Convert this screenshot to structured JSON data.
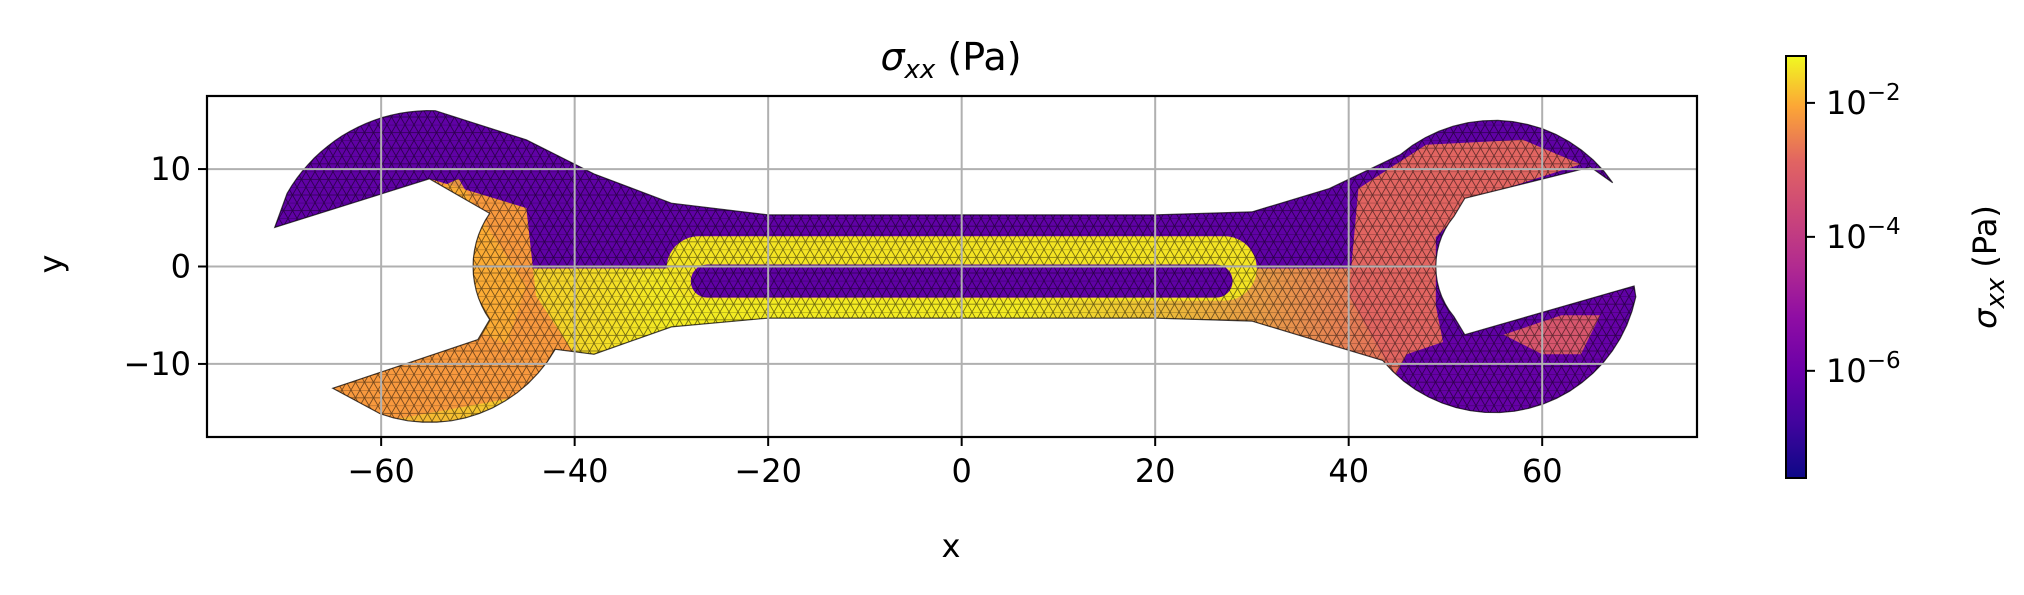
{
  "chart_data": {
    "type": "heatmap",
    "title": "σxx (Pa)",
    "title_parts": {
      "symbol": "σ",
      "subscript": "xx",
      "unit": " (Pa)"
    },
    "xlabel": "x",
    "ylabel": "y",
    "xlim": [
      -78,
      76
    ],
    "ylim": [
      -17.5,
      17.5
    ],
    "xticks": [
      -60,
      -40,
      -20,
      0,
      20,
      40,
      60
    ],
    "xtick_labels": [
      "−60",
      "−40",
      "−20",
      "0",
      "20",
      "40",
      "60"
    ],
    "yticks": [
      -10,
      0,
      10
    ],
    "ytick_labels": [
      "−10",
      "0",
      "10"
    ],
    "grid": true,
    "colormap": "plasma",
    "color_scale": "log",
    "colorbar": {
      "range_log10": [
        -7.6,
        -1.3
      ],
      "ticks_log10": [
        -6,
        -4,
        -2
      ],
      "tick_bases": [
        "10",
        "10",
        "10"
      ],
      "tick_exponents": [
        "−6",
        "−4",
        "−2"
      ],
      "label_symbol": "σ",
      "label_subscript": "xx",
      "label_unit": " (Pa)"
    },
    "field_regions": [
      {
        "region": "handle upper half",
        "sigma_xx_log10": -6.5
      },
      {
        "region": "handle lower edge band",
        "sigma_xx_log10": -1.5
      },
      {
        "region": "handle slot band",
        "sigma_xx_log10": -1.6
      },
      {
        "region": "left jaw upper",
        "sigma_xx_log10": -6.6
      },
      {
        "region": "left jaw lower",
        "sigma_xx_log10": -2.8
      },
      {
        "region": "right ring upper-left",
        "sigma_xx_log10": -3.8
      },
      {
        "region": "right ring lower",
        "sigma_xx_log10": -6.4
      }
    ],
    "colors": {
      "plasma_low": "#0d0887",
      "plasma_mid": "#cc4778",
      "plasma_high": "#f0f921",
      "grid": "#b0b0b0"
    }
  }
}
